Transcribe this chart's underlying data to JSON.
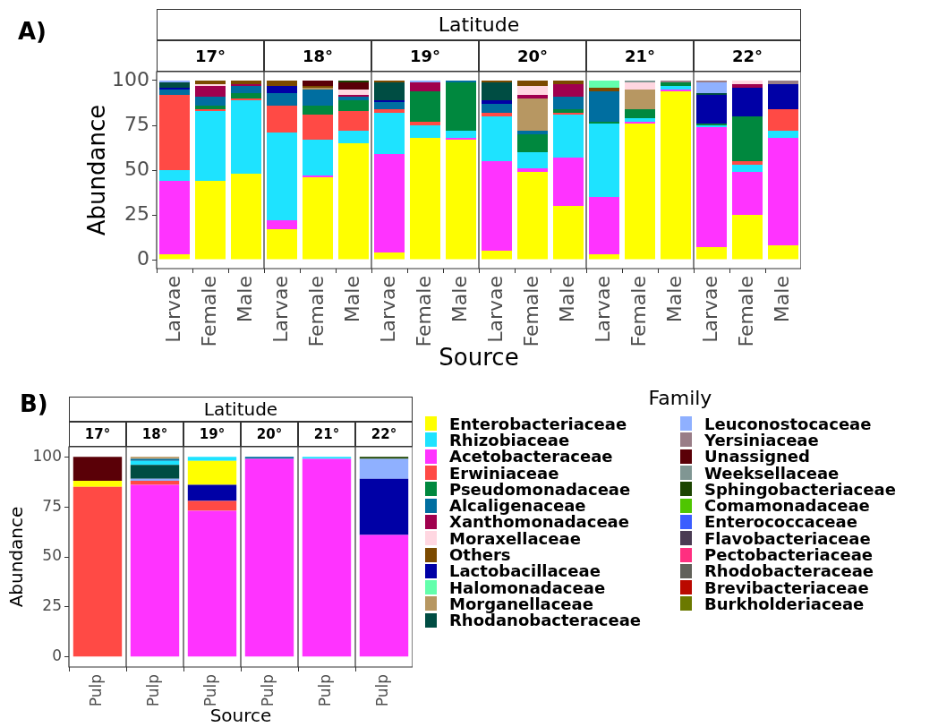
{
  "chart_data": [
    {
      "type": "bar",
      "title": "17°",
      "ylabel": "Abundance",
      "annotations": [
        "A)",
        "Latitude"
      ],
      "legend": "bottom right",
      "categories": [
        "Larvae",
        "Female",
        "Male"
      ],
      "stacked": true,
      "ylim": [
        -5,
        105
      ],
      "yticks": [
        0,
        25,
        50,
        75,
        100
      ],
      "series": [
        {
          "name": "Enterobacteriaceae",
          "color": "#ffff00",
          "values": [
            3,
            44,
            48
          ]
        },
        {
          "name": "Acetobacteraceae",
          "color": "#ff33ff",
          "values": [
            41,
            null,
            null
          ]
        },
        {
          "name": "Rhizobiaceae",
          "color": "#1ee3ff",
          "values": [
            6,
            39,
            41
          ]
        },
        {
          "name": "Erwiniaceae",
          "color": "#ff4a45",
          "values": [
            42,
            1,
            1
          ]
        },
        {
          "name": "Pseudomonadaceae",
          "color": "#00883e",
          "values": [
            null,
            2,
            3
          ]
        },
        {
          "name": "Alcaligenaceae",
          "color": "#006ea0",
          "values": [
            3,
            5,
            4
          ]
        },
        {
          "name": "Lactobacillaceae",
          "color": "#0000a6",
          "values": [
            1,
            null,
            null
          ]
        },
        {
          "name": "Xanthomonadaceae",
          "color": "#a0004e",
          "values": [
            null,
            6,
            1
          ]
        },
        {
          "name": "Rhodanobacteraceae",
          "color": "#004d43",
          "values": [
            3,
            null,
            null
          ]
        },
        {
          "name": "Moraxellaceae",
          "color": "#ffd7e1",
          "values": [
            null,
            1,
            null
          ]
        },
        {
          "name": "Others",
          "color": "#7b4a00",
          "values": [
            null,
            2,
            2
          ]
        },
        {
          "name": "Leuconostocaceae",
          "color": "#8fb0ff",
          "values": [
            1,
            null,
            null
          ]
        }
      ]
    },
    {
      "type": "bar",
      "title": "18°",
      "tick_labels": "x",
      "legend": "bottom right",
      "categories": [
        "Larvae",
        "Female",
        "Male"
      ],
      "stacked": true,
      "ylim": [
        -5,
        105
      ],
      "yticks": [
        0,
        25,
        50,
        75,
        100
      ],
      "series": [
        {
          "name": "Enterobacteriaceae",
          "color": "#ffff00",
          "values": [
            17,
            46,
            65
          ]
        },
        {
          "name": "Acetobacteraceae",
          "color": "#ff33ff",
          "values": [
            5,
            1,
            null
          ]
        },
        {
          "name": "Rhizobiaceae",
          "color": "#1ee3ff",
          "values": [
            49,
            20,
            7
          ]
        },
        {
          "name": "Erwiniaceae",
          "color": "#ff4a45",
          "values": [
            15,
            14,
            11
          ]
        },
        {
          "name": "Pseudomonadaceae",
          "color": "#00883e",
          "values": [
            null,
            5,
            6
          ]
        },
        {
          "name": "Alcaligenaceae",
          "color": "#006ea0",
          "values": [
            7,
            9,
            2
          ]
        },
        {
          "name": "Lactobacillaceae",
          "color": "#0000a6",
          "values": [
            4,
            null,
            null
          ]
        },
        {
          "name": "Morganellaceae",
          "color": "#b79762",
          "values": [
            null,
            1,
            null
          ]
        },
        {
          "name": "Xanthomonadaceae",
          "color": "#a0004e",
          "values": [
            null,
            null,
            1
          ]
        },
        {
          "name": "Moraxellaceae",
          "color": "#ffd7e1",
          "values": [
            null,
            null,
            3
          ]
        },
        {
          "name": "Others",
          "color": "#7b4a00",
          "values": [
            3,
            1,
            null
          ]
        },
        {
          "name": "Unassigned",
          "color": "#5a0007",
          "values": [
            null,
            3,
            4
          ]
        },
        {
          "name": "Sphingobacteriaceae",
          "color": "#1b4400",
          "values": [
            null,
            null,
            1
          ]
        }
      ]
    },
    {
      "type": "bar",
      "title": "19°",
      "tick_labels": "x",
      "legend": "bottom right",
      "categories": [
        "Larvae",
        "Female",
        "Male"
      ],
      "stacked": true,
      "ylim": [
        -5,
        105
      ],
      "yticks": [
        0,
        25,
        50,
        75,
        100
      ],
      "series": [
        {
          "name": "Enterobacteriaceae",
          "color": "#ffff00",
          "values": [
            4,
            68,
            67
          ]
        },
        {
          "name": "Acetobacteraceae",
          "color": "#ff33ff",
          "values": [
            55,
            null,
            1
          ]
        },
        {
          "name": "Rhizobiaceae",
          "color": "#1ee3ff",
          "values": [
            23,
            7,
            4
          ]
        },
        {
          "name": "Erwiniaceae",
          "color": "#ff4a45",
          "values": [
            2,
            2,
            null
          ]
        },
        {
          "name": "Pseudomonadaceae",
          "color": "#00883e",
          "values": [
            null,
            17,
            27
          ]
        },
        {
          "name": "Alcaligenaceae",
          "color": "#006ea0",
          "values": [
            4,
            null,
            1
          ]
        },
        {
          "name": "Lactobacillaceae",
          "color": "#0000a6",
          "values": [
            1,
            null,
            null
          ]
        },
        {
          "name": "Xanthomonadaceae",
          "color": "#a0004e",
          "values": [
            null,
            5,
            null
          ]
        },
        {
          "name": "Rhodanobacteraceae",
          "color": "#004d43",
          "values": [
            10,
            null,
            null
          ]
        },
        {
          "name": "Others",
          "color": "#7b4a00",
          "values": [
            1,
            null,
            null
          ]
        },
        {
          "name": "Leuconostocaceae",
          "color": "#8fb0ff",
          "values": [
            null,
            1,
            null
          ]
        }
      ]
    },
    {
      "type": "bar",
      "title": "20°",
      "tick_labels": "x",
      "xlabel": "Source",
      "legend": "bottom right",
      "categories": [
        "Larvae",
        "Female",
        "Male"
      ],
      "stacked": true,
      "ylim": [
        -5,
        105
      ],
      "yticks": [
        0,
        25,
        50,
        75,
        100
      ],
      "series": [
        {
          "name": "Enterobacteriaceae",
          "color": "#ffff00",
          "values": [
            5,
            49,
            30
          ]
        },
        {
          "name": "Acetobacteraceae",
          "color": "#ff33ff",
          "values": [
            50,
            2,
            27
          ]
        },
        {
          "name": "Rhizobiaceae",
          "color": "#1ee3ff",
          "values": [
            25,
            9,
            24
          ]
        },
        {
          "name": "Erwiniaceae",
          "color": "#ff4a45",
          "values": [
            2,
            null,
            1
          ]
        },
        {
          "name": "Pseudomonadaceae",
          "color": "#00883e",
          "values": [
            null,
            10,
            2
          ]
        },
        {
          "name": "Alcaligenaceae",
          "color": "#006ea0",
          "values": [
            5,
            2,
            7
          ]
        },
        {
          "name": "Lactobacillaceae",
          "color": "#0000a6",
          "values": [
            2,
            null,
            null
          ]
        },
        {
          "name": "Morganellaceae",
          "color": "#b79762",
          "values": [
            null,
            18,
            null
          ]
        },
        {
          "name": "Xanthomonadaceae",
          "color": "#a0004e",
          "values": [
            null,
            2,
            7
          ]
        },
        {
          "name": "Rhodanobacteraceae",
          "color": "#004d43",
          "values": [
            10,
            null,
            null
          ]
        },
        {
          "name": "Moraxellaceae",
          "color": "#ffd7e1",
          "values": [
            null,
            5,
            null
          ]
        },
        {
          "name": "Others",
          "color": "#7b4a00",
          "values": [
            1,
            3,
            2
          ]
        }
      ]
    },
    {
      "type": "bar",
      "title": "21°",
      "tick_labels": "x",
      "legend": "bottom left",
      "categories": [
        "Larvae",
        "Female",
        "Male"
      ],
      "stacked": true,
      "ylim": [
        -5,
        105
      ],
      "yticks": [
        0,
        25,
        50,
        75,
        100
      ],
      "series": [
        {
          "name": "Enterobacteriaceae",
          "color": "#ffff00",
          "values": [
            3,
            76,
            94
          ]
        },
        {
          "name": "Acetobacteraceae",
          "color": "#ff33ff",
          "values": [
            32,
            1,
            1
          ]
        },
        {
          "name": "Rhizobiaceae",
          "color": "#1ee3ff",
          "values": [
            41,
            2,
            2
          ]
        },
        {
          "name": "Pseudomonadaceae",
          "color": "#00883e",
          "values": [
            1,
            5,
            2
          ]
        },
        {
          "name": "Alcaligenaceae",
          "color": "#006ea0",
          "values": [
            17,
            null,
            null
          ]
        },
        {
          "name": "Morganellaceae",
          "color": "#b79762",
          "values": [
            null,
            11,
            null
          ]
        },
        {
          "name": "Moraxellaceae",
          "color": "#ffd7e1",
          "values": [
            null,
            4,
            null
          ]
        },
        {
          "name": "Others",
          "color": "#7b4a00",
          "values": [
            2,
            null,
            null
          ]
        },
        {
          "name": "Halomonadaceae",
          "color": "#63ffac",
          "values": [
            4,
            null,
            null
          ]
        },
        {
          "name": "Yersiniaceae",
          "color": "#997d87",
          "values": [
            null,
            null,
            1
          ]
        },
        {
          "name": "Weeksellaceae",
          "color": "#809693",
          "values": [
            null,
            1,
            null
          ]
        }
      ]
    },
    {
      "type": "bar",
      "title": "22°",
      "tick_labels": "x",
      "legend": "bottom left",
      "categories": [
        "Larvae",
        "Female",
        "Male"
      ],
      "stacked": true,
      "ylim": [
        -5,
        105
      ],
      "yticks": [
        0,
        25,
        50,
        75,
        100
      ],
      "series": [
        {
          "name": "Enterobacteriaceae",
          "color": "#ffff00",
          "values": [
            7,
            25,
            8
          ]
        },
        {
          "name": "Acetobacteraceae",
          "color": "#ff33ff",
          "values": [
            67,
            24,
            60
          ]
        },
        {
          "name": "Rhizobiaceae",
          "color": "#1ee3ff",
          "values": [
            1,
            4,
            4
          ]
        },
        {
          "name": "Erwiniaceae",
          "color": "#ff4a45",
          "values": [
            null,
            2,
            12
          ]
        },
        {
          "name": "Pseudomonadaceae",
          "color": "#00883e",
          "values": [
            1,
            25,
            null
          ]
        },
        {
          "name": "Lactobacillaceae",
          "color": "#0000a6",
          "values": [
            16,
            16,
            14
          ]
        },
        {
          "name": "Xanthomonadaceae",
          "color": "#a0004e",
          "values": [
            null,
            2,
            null
          ]
        },
        {
          "name": "Rhodanobacteraceae",
          "color": "#004d43",
          "values": [
            1,
            null,
            null
          ]
        },
        {
          "name": "Moraxellaceae",
          "color": "#ffd7e1",
          "values": [
            null,
            2,
            null
          ]
        },
        {
          "name": "Leuconostocaceae",
          "color": "#8fb0ff",
          "values": [
            6,
            null,
            null
          ]
        },
        {
          "name": "Yersiniaceae",
          "color": "#997d87",
          "values": [
            1,
            null,
            2
          ]
        }
      ]
    },
    {
      "type": "bar",
      "title": "17°",
      "ylabel": "Abundance",
      "xlabel": "Source",
      "annotations": [
        "B)",
        "Latitude"
      ],
      "legend": "right",
      "categories": [
        "Pulp"
      ],
      "stacked": true,
      "ylim": [
        -5,
        105
      ],
      "yticks": [
        0,
        25,
        50,
        75,
        100
      ],
      "series": [
        {
          "name": "Erwiniaceae",
          "color": "#ff4a45",
          "values": [
            85
          ]
        },
        {
          "name": "Enterobacteriaceae",
          "color": "#ffff00",
          "values": [
            3
          ]
        },
        {
          "name": "Unassigned",
          "color": "#5a0007",
          "values": [
            12
          ]
        }
      ]
    },
    {
      "type": "bar",
      "title": "18°",
      "tick_labels": "x",
      "legend": "right",
      "categories": [
        "Pulp"
      ],
      "stacked": true,
      "ylim": [
        -5,
        105
      ],
      "yticks": [
        0,
        25,
        50,
        75,
        100
      ],
      "series": [
        {
          "name": "Acetobacteraceae",
          "color": "#ff33ff",
          "values": [
            86
          ]
        },
        {
          "name": "Erwiniaceae",
          "color": "#ff4a45",
          "values": [
            2
          ]
        },
        {
          "name": "Leuconostocaceae",
          "color": "#8fb0ff",
          "values": [
            1
          ]
        },
        {
          "name": "Rhodanobacteraceae",
          "color": "#004d43",
          "values": [
            7
          ]
        },
        {
          "name": "Rhizobiaceae",
          "color": "#1ee3ff",
          "values": [
            2
          ]
        },
        {
          "name": "Alcaligenaceae",
          "color": "#006ea0",
          "values": [
            1
          ]
        },
        {
          "name": "Morganellaceae",
          "color": "#b79762",
          "values": [
            1
          ]
        }
      ]
    },
    {
      "type": "bar",
      "title": "19°",
      "tick_labels": "x",
      "legend": "right",
      "categories": [
        "Pulp"
      ],
      "stacked": true,
      "ylim": [
        -5,
        105
      ],
      "yticks": [
        0,
        25,
        50,
        75,
        100
      ],
      "series": [
        {
          "name": "Acetobacteraceae",
          "color": "#ff33ff",
          "values": [
            73
          ]
        },
        {
          "name": "Erwiniaceae",
          "color": "#ff4a45",
          "values": [
            5
          ]
        },
        {
          "name": "Lactobacillaceae",
          "color": "#0000a6",
          "values": [
            8
          ]
        },
        {
          "name": "Enterobacteriaceae",
          "color": "#ffff00",
          "values": [
            12
          ]
        },
        {
          "name": "Rhizobiaceae",
          "color": "#1ee3ff",
          "values": [
            2
          ]
        }
      ]
    },
    {
      "type": "bar",
      "title": "20°",
      "tick_labels": "x",
      "legend": "right",
      "categories": [
        "Pulp"
      ],
      "stacked": true,
      "ylim": [
        -5,
        105
      ],
      "yticks": [
        0,
        25,
        50,
        75,
        100
      ],
      "series": [
        {
          "name": "Acetobacteraceae",
          "color": "#ff33ff",
          "values": [
            99
          ]
        },
        {
          "name": "Alcaligenaceae",
          "color": "#006ea0",
          "values": [
            1
          ]
        }
      ]
    },
    {
      "type": "bar",
      "title": "21°",
      "tick_labels": "x",
      "legend": "right",
      "categories": [
        "Pulp"
      ],
      "stacked": true,
      "ylim": [
        -5,
        105
      ],
      "yticks": [
        0,
        25,
        50,
        75,
        100
      ],
      "series": [
        {
          "name": "Acetobacteraceae",
          "color": "#ff33ff",
          "values": [
            99
          ]
        },
        {
          "name": "Rhizobiaceae",
          "color": "#1ee3ff",
          "values": [
            1
          ]
        }
      ]
    },
    {
      "type": "bar",
      "title": "22°",
      "tick_labels": "x",
      "categories": [
        "Pulp"
      ],
      "stacked": true,
      "ylim": [
        -5,
        105
      ],
      "yticks": [
        0,
        25,
        50,
        75,
        100
      ],
      "legend": "right",
      "legend_title": "Family",
      "series": [
        {
          "name": "Enterobacteriaceae",
          "color": "#ffff00",
          "values": [
            null
          ]
        },
        {
          "name": "Rhizobiaceae",
          "color": "#1ee3ff",
          "values": [
            null
          ]
        },
        {
          "name": "Acetobacteraceae",
          "color": "#ff33ff",
          "values": [
            61
          ]
        },
        {
          "name": "Erwiniaceae",
          "color": "#ff4a45",
          "values": [
            null
          ]
        },
        {
          "name": "Pseudomonadaceae",
          "color": "#00883e",
          "values": [
            null
          ]
        },
        {
          "name": "Alcaligenaceae",
          "color": "#006ea0",
          "values": [
            null
          ]
        },
        {
          "name": "Xanthomonadaceae",
          "color": "#a0004e",
          "values": [
            null
          ]
        },
        {
          "name": "Moraxellaceae",
          "color": "#ffd7e1",
          "values": [
            null
          ]
        },
        {
          "name": "Others",
          "color": "#7b4a00",
          "values": [
            null
          ]
        },
        {
          "name": "Lactobacillaceae",
          "color": "#0000a6",
          "values": [
            28
          ]
        },
        {
          "name": "Halomonadaceae",
          "color": "#63ffac",
          "values": [
            null
          ]
        },
        {
          "name": "Morganellaceae",
          "color": "#b79762",
          "values": [
            null
          ]
        },
        {
          "name": "Rhodanobacteraceae",
          "color": "#004d43",
          "values": [
            null
          ]
        },
        {
          "name": "Leuconostocaceae",
          "color": "#8fb0ff",
          "values": [
            10
          ]
        },
        {
          "name": "Yersiniaceae",
          "color": "#997d87",
          "values": [
            null
          ]
        },
        {
          "name": "Unassigned",
          "color": "#5a0007",
          "values": [
            null
          ]
        },
        {
          "name": "Weeksellaceae",
          "color": "#809693",
          "values": [
            null
          ]
        },
        {
          "name": "Sphingobacteriaceae",
          "color": "#1b4400",
          "values": [
            1
          ]
        },
        {
          "name": "Comamonadaceae",
          "color": "#4fc601",
          "values": [
            null
          ]
        },
        {
          "name": "Enterococcaceae",
          "color": "#3b5dff",
          "values": [
            null
          ]
        },
        {
          "name": "Flavobacteriaceae",
          "color": "#4a3b53",
          "values": [
            null
          ]
        },
        {
          "name": "Pectobacteriaceae",
          "color": "#ff2f80",
          "values": [
            null
          ]
        },
        {
          "name": "Rhodobacteraceae",
          "color": "#61615a",
          "values": [
            null
          ]
        },
        {
          "name": "Brevibacteriaceae",
          "color": "#ba0900",
          "values": [
            null
          ]
        },
        {
          "name": "Burkholderiaceae",
          "color": "#6b7900",
          "values": [
            null
          ]
        }
      ]
    }
  ]
}
